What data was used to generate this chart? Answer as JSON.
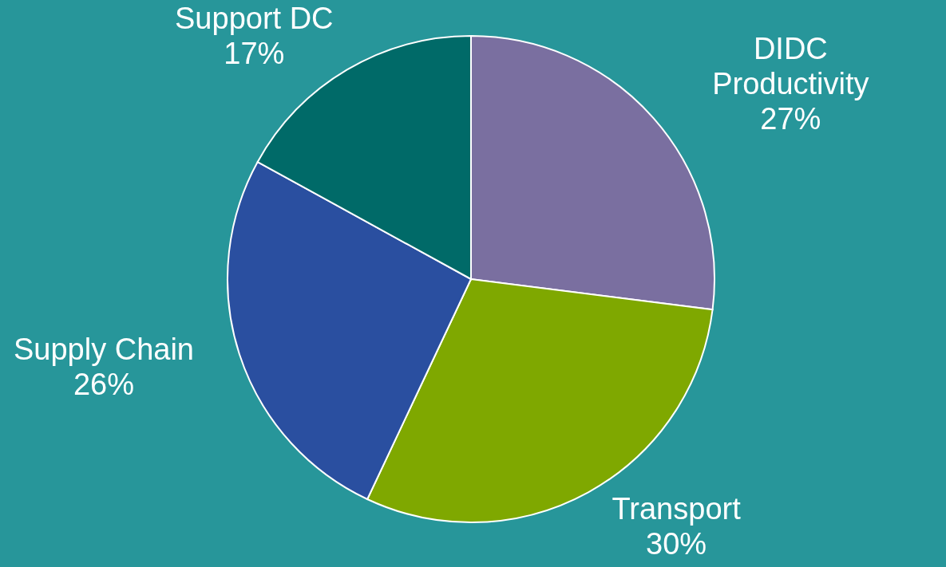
{
  "chart_data": {
    "type": "pie",
    "categories": [
      "DIDC Productivity",
      "Transport",
      "Supply Chain",
      "Support DC"
    ],
    "values": [
      27,
      30,
      26,
      17
    ],
    "value_labels": [
      "27%",
      "30%",
      "26%",
      "17%"
    ],
    "colors": [
      "#7a6fa0",
      "#7fa800",
      "#2a4fa0",
      "#006a68"
    ]
  }
}
